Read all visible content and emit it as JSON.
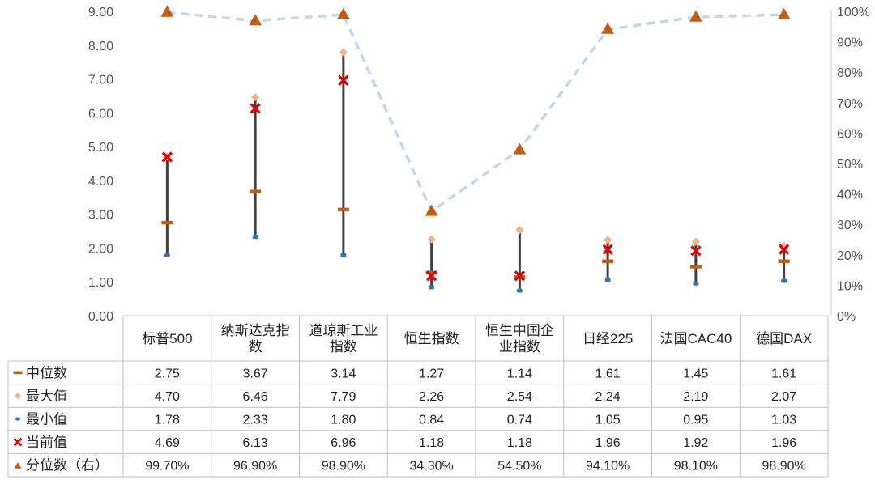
{
  "chart_data": {
    "type": "table",
    "chart_kind": "high-low-median range chart with percentile line on secondary axis",
    "categories": [
      "标普500",
      "纳斯达克指数",
      "道琼斯工业指数",
      "恒生指数",
      "恒生中国企业指数",
      "日经225",
      "法国CAC40",
      "德国DAX"
    ],
    "category_header_lines": [
      [
        "标普500"
      ],
      [
        "纳斯达克指",
        "数"
      ],
      [
        "道琼斯工业",
        "指数"
      ],
      [
        "恒生指数"
      ],
      [
        "恒生中国企",
        "业指数"
      ],
      [
        "日经225"
      ],
      [
        "法国CAC40"
      ],
      [
        "德国DAX"
      ]
    ],
    "series": [
      {
        "name": "中位数",
        "values": [
          2.75,
          3.67,
          3.14,
          1.27,
          1.14,
          1.61,
          1.45,
          1.61
        ],
        "display": [
          "2.75",
          "3.67",
          "3.14",
          "1.27",
          "1.14",
          "1.61",
          "1.45",
          "1.61"
        ],
        "color": "#c55a11",
        "marker": "dash",
        "axis": "left"
      },
      {
        "name": "最大值",
        "values": [
          4.7,
          6.46,
          7.79,
          2.26,
          2.54,
          2.24,
          2.19,
          2.07
        ],
        "display": [
          "4.70",
          "6.46",
          "7.79",
          "2.26",
          "2.54",
          "2.24",
          "2.19",
          "2.07"
        ],
        "color": "#f4b183",
        "marker": "diamond",
        "axis": "left"
      },
      {
        "name": "最小值",
        "values": [
          1.78,
          2.33,
          1.8,
          0.84,
          0.74,
          1.05,
          0.95,
          1.03
        ],
        "display": [
          "1.78",
          "2.33",
          "1.80",
          "0.84",
          "0.74",
          "1.05",
          "0.95",
          "1.03"
        ],
        "color": "#2e75b6",
        "marker": "dot",
        "axis": "left"
      },
      {
        "name": "当前值",
        "values": [
          4.69,
          6.13,
          6.96,
          1.18,
          1.18,
          1.96,
          1.92,
          1.96
        ],
        "display": [
          "4.69",
          "6.13",
          "6.96",
          "1.18",
          "1.18",
          "1.96",
          "1.92",
          "1.96"
        ],
        "color": "#e00000",
        "marker": "x",
        "axis": "left"
      },
      {
        "name": "分位数（右）",
        "values": [
          99.7,
          96.9,
          98.9,
          34.3,
          54.5,
          94.1,
          98.1,
          98.9
        ],
        "display": [
          "99.70%",
          "96.90%",
          "98.90%",
          "34.30%",
          "54.50%",
          "94.10%",
          "98.10%",
          "98.90%"
        ],
        "color": "#c55a11",
        "line_color": "#bdd7ee",
        "marker": "triangle",
        "axis": "right"
      }
    ],
    "range_line_color": "#404040",
    "y_left": {
      "min": 0,
      "max": 9,
      "step": 1,
      "labels": [
        "0.00",
        "1.00",
        "2.00",
        "3.00",
        "4.00",
        "5.00",
        "6.00",
        "7.00",
        "8.00",
        "9.00"
      ]
    },
    "y_right": {
      "min": 0,
      "max": 100,
      "step": 10,
      "labels": [
        "0%",
        "10%",
        "20%",
        "30%",
        "40%",
        "50%",
        "60%",
        "70%",
        "80%",
        "90%",
        "100%"
      ]
    },
    "grid": false,
    "legend": "in data table"
  }
}
